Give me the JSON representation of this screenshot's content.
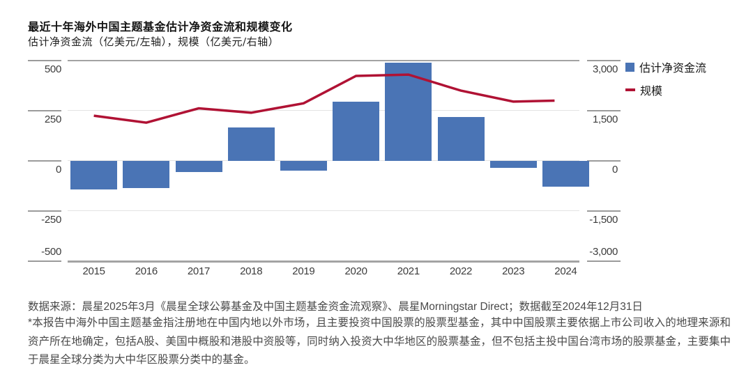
{
  "title": "最近十年海外中国主题基金估计净资金流和规模变化",
  "subtitle": "估计净资金流（亿美元/左轴），规模（亿美元/右轴）",
  "legend": [
    {
      "label": "估计净资金流",
      "swatch": "blue-square",
      "color": "#4a74b5"
    },
    {
      "label": "规模",
      "swatch": "red-dash",
      "color": "#b01234"
    }
  ],
  "footer": {
    "source_line": "数据来源：晨星2025年3月《晨星全球公募基金及中国主题基金资金流观察》、晨星Morningstar Direct；数据截至2024年12月31日",
    "note": "*本报告中海外中国主题基金指注册地在中国内地以外市场，且主要投资中国股票的股票型基金，其中中国股票主要依据上市公司收入的地理来源和资产所在地确定，包括A股、美国中概股和港股中资股等，同时纳入投资大中华地区的股票基金，但不包括主投中国台湾市场的股票基金，主要集中于晨星全球分类为大中华区股票分类中的基金。"
  },
  "chart_data": {
    "type": "bar",
    "subtype": "combo-bar-line",
    "title": "最近十年海外中国主题基金估计净资金流和规模变化",
    "subtitle": "估计净资金流（亿美元/左轴），规模（亿美元/右轴）",
    "categories": [
      "2015",
      "2016",
      "2017",
      "2018",
      "2019",
      "2020",
      "2021",
      "2022",
      "2023",
      "2024"
    ],
    "series": [
      {
        "name": "估计净资金流",
        "type": "bar",
        "axis": "left",
        "unit": "亿美元",
        "color": "#4a74b5",
        "values": [
          -145,
          -135,
          -55,
          165,
          -50,
          295,
          490,
          220,
          -35,
          -130
        ]
      },
      {
        "name": "规模",
        "type": "line",
        "axis": "right",
        "unit": "亿美元",
        "color": "#b01234",
        "values": [
          1350,
          1140,
          1570,
          1440,
          1720,
          2540,
          2580,
          2100,
          1770,
          1800
        ]
      }
    ],
    "left_axis": {
      "min": -500,
      "max": 500,
      "ticks": [
        500,
        250,
        0,
        -250,
        -500
      ],
      "tick_labels": [
        "500",
        "250",
        "0",
        "-250",
        "-500"
      ]
    },
    "right_axis": {
      "min": -3000,
      "max": 3000,
      "ticks": [
        3000,
        1500,
        0,
        -1500,
        -3000
      ],
      "tick_labels": [
        "3,000",
        "1,500",
        "0",
        "-1,500",
        "-3,000"
      ]
    },
    "grid": "horizontal",
    "legend_position": "top-right"
  }
}
